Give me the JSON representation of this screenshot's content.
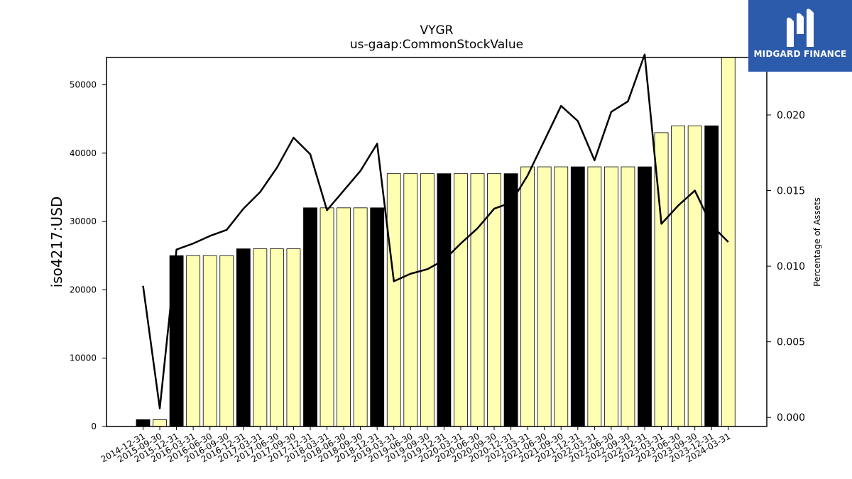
{
  "brand": {
    "name": "MIDGARD FINANCE",
    "logo_icon": "midgard-m-icon",
    "bg_color": "#2d5bab"
  },
  "chart_data": {
    "type": "bar",
    "title": "VYGR",
    "subtitle": "us-gaap:CommonStockValue",
    "ylabel": "iso4217:USD",
    "y2label": "Percentage of Assets",
    "ylim": [
      0,
      54000
    ],
    "y2lim": [
      -0.0006,
      0.0238
    ],
    "yticks": [
      0,
      10000,
      20000,
      30000,
      40000,
      50000
    ],
    "y2ticks": [
      0.0,
      0.005,
      0.01,
      0.015,
      0.02
    ],
    "y2tick_labels": [
      "0.000",
      "0.005",
      "0.010",
      "0.015",
      "0.020"
    ],
    "categories": [
      "2014-12-31",
      "2015-09-30",
      "2015-12-31",
      "2016-03-31",
      "2016-06-30",
      "2016-09-30",
      "2016-12-31",
      "2017-03-31",
      "2017-06-30",
      "2017-09-30",
      "2017-12-31",
      "2018-03-31",
      "2018-06-30",
      "2018-09-30",
      "2018-12-31",
      "2019-03-31",
      "2019-06-30",
      "2019-09-30",
      "2019-12-31",
      "2020-03-31",
      "2020-06-30",
      "2020-09-30",
      "2020-12-31",
      "2021-03-31",
      "2021-06-30",
      "2021-09-30",
      "2021-12-31",
      "2022-03-31",
      "2022-06-30",
      "2022-09-30",
      "2022-12-31",
      "2023-03-31",
      "2023-06-30",
      "2023-09-30",
      "2023-12-31",
      "2024-03-31"
    ],
    "series": [
      {
        "values": [
          1000,
          1000,
          25000,
          25000,
          25000,
          25000,
          26000,
          26000,
          26000,
          26000,
          32000,
          32000,
          32000,
          32000,
          32000,
          37000,
          37000,
          37000,
          37000,
          37000,
          37000,
          37000,
          37000,
          38000,
          38000,
          38000,
          38000,
          38000,
          38000,
          38000,
          38000,
          43000,
          44000,
          44000,
          44000,
          54000
        ],
        "highlight": [
          true,
          false,
          true,
          false,
          false,
          false,
          true,
          false,
          false,
          false,
          true,
          false,
          false,
          false,
          true,
          false,
          false,
          false,
          true,
          false,
          false,
          false,
          true,
          false,
          false,
          false,
          true,
          false,
          false,
          false,
          true,
          false,
          false,
          false,
          true,
          false
        ]
      },
      {
        "axis": "right",
        "type": "line",
        "values": [
          0.0087,
          0.0006,
          0.0111,
          0.0115,
          0.012,
          0.0124,
          0.0138,
          0.0149,
          0.0165,
          0.0185,
          0.0174,
          0.0137,
          0.015,
          0.0163,
          0.0181,
          0.009,
          0.0095,
          0.0098,
          0.0104,
          0.0115,
          0.0125,
          0.0138,
          0.0142,
          0.016,
          0.0183,
          0.0206,
          0.0196,
          0.017,
          0.0202,
          0.0209,
          0.024,
          0.0128,
          0.014,
          0.015,
          0.0127,
          0.0116
        ]
      }
    ],
    "colors": {
      "bar_default": "#ffffb3",
      "bar_highlight": "#000000",
      "bar_edge": "#000000",
      "line": "#000000"
    },
    "grid": false,
    "legend": "none"
  }
}
